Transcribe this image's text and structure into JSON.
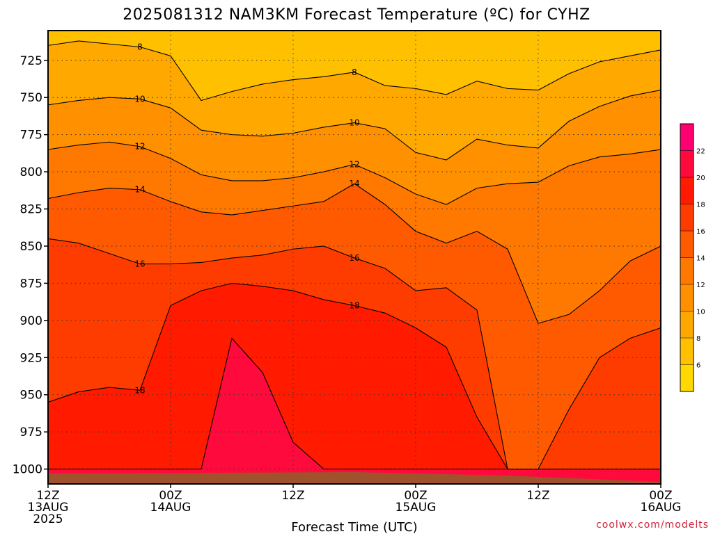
{
  "chart_data": {
    "type": "heatmap",
    "title": "2025081312 NAM3KM Forecast Temperature (ºC) for CYHZ",
    "xlabel": "Forecast Time (UTC)",
    "ylabel": "",
    "credit": "coolwx.com/modelts",
    "x_ticks": [
      {
        "hour": 0,
        "lines": [
          "12Z",
          "13AUG",
          "2025"
        ]
      },
      {
        "hour": 12,
        "lines": [
          "00Z",
          "14AUG"
        ]
      },
      {
        "hour": 24,
        "lines": [
          "12Z"
        ]
      },
      {
        "hour": 36,
        "lines": [
          "00Z",
          "15AUG"
        ]
      },
      {
        "hour": 48,
        "lines": [
          "12Z"
        ]
      },
      {
        "hour": 60,
        "lines": [
          "00Z",
          "16AUG"
        ]
      }
    ],
    "xlim": [
      0,
      60
    ],
    "y_ticks": [
      725,
      750,
      775,
      800,
      825,
      850,
      875,
      900,
      925,
      950,
      975,
      1000
    ],
    "ylim": [
      705,
      1010
    ],
    "y_axis": "pressure (hPa), inverted",
    "grid": true,
    "colorbar": {
      "levels": [
        4,
        6,
        8,
        10,
        12,
        14,
        16,
        18,
        20,
        22,
        24
      ],
      "tick_labels": [
        "6",
        "8",
        "10",
        "12",
        "14",
        "16",
        "18",
        "20",
        "22"
      ],
      "colors": [
        "#ffd800",
        "#ffc000",
        "#ffa800",
        "#ff9000",
        "#ff7800",
        "#ff5a00",
        "#ff3c00",
        "#ff1a00",
        "#ff0a3c",
        "#ff0070"
      ]
    },
    "ground_color": "#a0522d",
    "series": [
      {
        "level": 8,
        "hours": [
          0,
          3,
          6,
          9,
          12,
          15,
          18,
          21,
          24,
          27,
          30,
          33,
          36,
          39,
          42,
          45,
          48,
          51,
          54,
          57,
          60
        ],
        "pressure": [
          715,
          712,
          714,
          716,
          722,
          752,
          746,
          741,
          738,
          736,
          733,
          742,
          744,
          748,
          739,
          744,
          745,
          734,
          726,
          722,
          718
        ]
      },
      {
        "level": 10,
        "hours": [
          0,
          3,
          6,
          9,
          12,
          15,
          18,
          21,
          24,
          27,
          30,
          33,
          36,
          39,
          42,
          45,
          48,
          51,
          54,
          57,
          60
        ],
        "pressure": [
          755,
          752,
          750,
          751,
          757,
          772,
          775,
          776,
          774,
          770,
          767,
          771,
          787,
          792,
          778,
          782,
          784,
          766,
          756,
          749,
          745
        ]
      },
      {
        "level": 12,
        "hours": [
          0,
          3,
          6,
          9,
          12,
          15,
          18,
          21,
          24,
          27,
          30,
          33,
          36,
          39,
          42,
          45,
          48,
          51,
          54,
          57,
          60
        ],
        "pressure": [
          785,
          782,
          780,
          783,
          791,
          802,
          806,
          806,
          804,
          800,
          795,
          804,
          815,
          822,
          811,
          808,
          807,
          796,
          790,
          788,
          785
        ]
      },
      {
        "level": 14,
        "hours": [
          0,
          3,
          6,
          9,
          12,
          15,
          18,
          21,
          24,
          27,
          30,
          33,
          36,
          39,
          42,
          45,
          48,
          51,
          54,
          57,
          60
        ],
        "pressure": [
          818,
          814,
          811,
          812,
          820,
          827,
          829,
          826,
          823,
          820,
          808,
          822,
          840,
          848,
          840,
          852,
          902,
          896,
          880,
          860,
          850
        ]
      },
      {
        "level": 16,
        "hours": [
          0,
          3,
          6,
          9,
          12,
          15,
          18,
          21,
          24,
          27,
          30,
          33,
          36,
          39,
          42,
          45,
          48,
          51,
          54,
          57,
          60
        ],
        "pressure": [
          845,
          848,
          855,
          862,
          862,
          861,
          858,
          856,
          852,
          850,
          858,
          865,
          880,
          878,
          893,
          1000,
          1000,
          960,
          925,
          912,
          905
        ]
      },
      {
        "level": 18,
        "hours": [
          0,
          3,
          6,
          9,
          12,
          15,
          18,
          21,
          24,
          27,
          30,
          33,
          36,
          39,
          42,
          45,
          48,
          51,
          54,
          57,
          60
        ],
        "pressure": [
          955,
          948,
          945,
          947,
          890,
          880,
          875,
          877,
          880,
          886,
          890,
          895,
          905,
          918,
          965,
          1000,
          1000,
          1000,
          1000,
          1000,
          1000
        ]
      },
      {
        "level": 20,
        "hours": [
          0,
          3,
          6,
          9,
          12,
          15,
          18,
          21,
          24,
          27,
          30,
          33,
          36,
          39,
          42,
          45,
          48,
          51,
          54,
          57,
          60
        ],
        "pressure": [
          1000,
          1000,
          1000,
          1000,
          1000,
          1000,
          912,
          935,
          982,
          1000,
          1000,
          1000,
          1000,
          1000,
          1000,
          1000,
          1000,
          1000,
          1000,
          1000,
          1000
        ]
      }
    ]
  }
}
